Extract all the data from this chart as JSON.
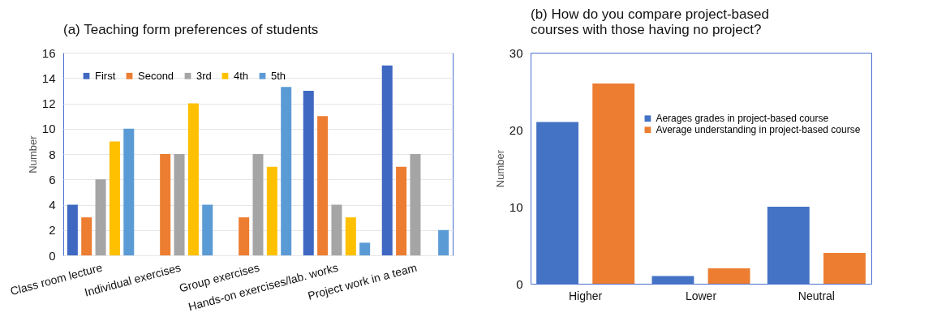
{
  "chart_data": [
    {
      "type": "bar",
      "title": "(a) Teaching form preferences of students",
      "ylabel": "Number",
      "categories": [
        "Class room lecture",
        "Individual exercises",
        "Group exercises",
        "Hands-on exercises/lab. works",
        "Project work in a team"
      ],
      "series": [
        {
          "name": "First",
          "color": "#3f68c2",
          "values": [
            4,
            null,
            null,
            13,
            15
          ]
        },
        {
          "name": "Second",
          "color": "#ed7d31",
          "values": [
            3,
            8,
            3,
            11,
            7
          ]
        },
        {
          "name": "3rd",
          "color": "#a5a5a5",
          "values": [
            6,
            8,
            8,
            4,
            8
          ]
        },
        {
          "name": "4th",
          "color": "#ffc000",
          "values": [
            9,
            12,
            7,
            3,
            null
          ]
        },
        {
          "name": "5th",
          "color": "#5b9bd5",
          "values": [
            10,
            4,
            13.3,
            1,
            2
          ]
        }
      ],
      "ylim": [
        0,
        16
      ],
      "yticks": [
        0,
        2,
        4,
        6,
        8,
        10,
        12,
        14,
        16
      ],
      "grid": "y",
      "legend": "top left"
    },
    {
      "type": "bar",
      "title": "(b) How do you compare project-based courses with those having no project?",
      "ylabel": "Number",
      "categories": [
        "Higher",
        "Lower",
        "Neutral"
      ],
      "series": [
        {
          "name": "Aerages grades in project-based course",
          "color": "#4472c4",
          "values": [
            21,
            1,
            10
          ]
        },
        {
          "name": "Average understanding in project-based course",
          "color": "#ed7d31",
          "values": [
            26,
            2,
            4
          ]
        }
      ],
      "ylim": [
        0,
        30
      ],
      "yticks": [
        0,
        10,
        20,
        30
      ],
      "legend": "right"
    }
  ]
}
